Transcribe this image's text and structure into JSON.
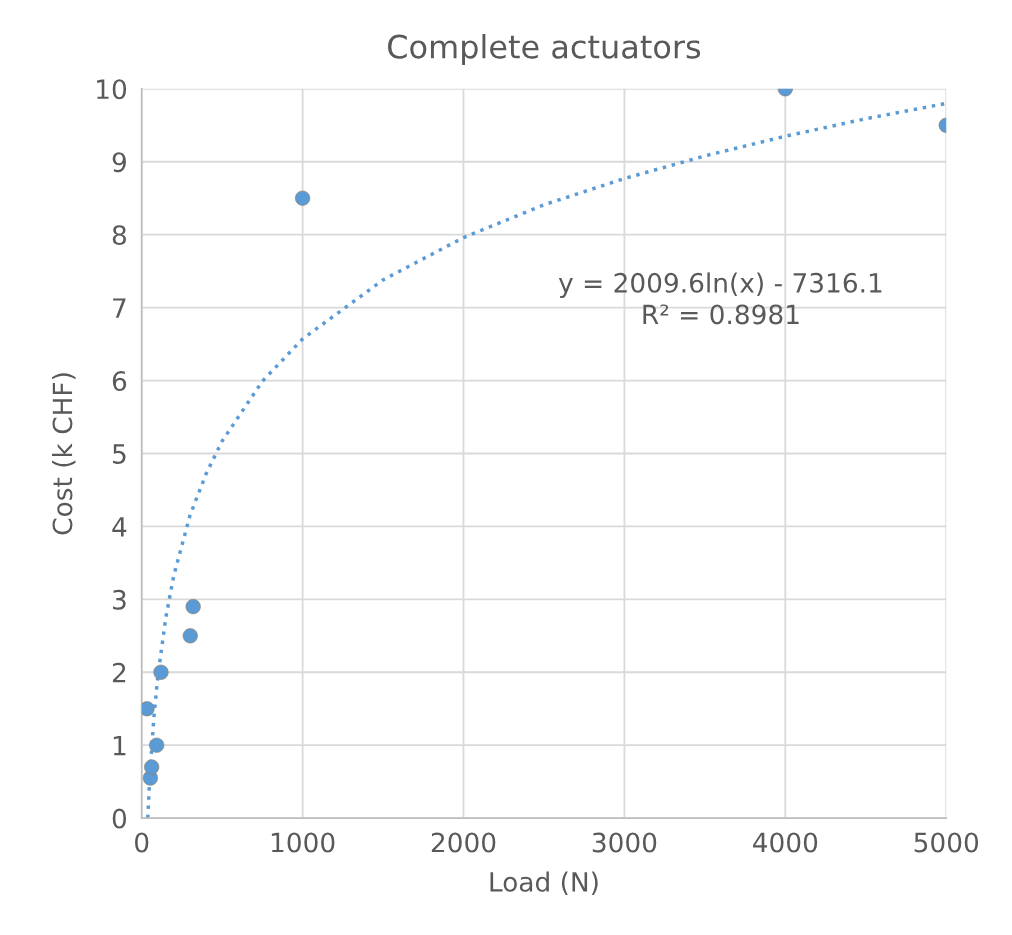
{
  "chart_data": {
    "type": "scatter",
    "title": "Complete actuators",
    "xlabel": "Load (N)",
    "ylabel": "Cost (k CHF)",
    "xlim": [
      0,
      5000
    ],
    "xticks": [
      0,
      1000,
      2000,
      3000,
      4000,
      5000
    ],
    "ylim": [
      0,
      10
    ],
    "yticks": [
      0,
      1,
      2,
      3,
      4,
      5,
      6,
      7,
      8,
      9,
      10
    ],
    "grid": true,
    "legend": false,
    "series": [
      {
        "color": "#5b9bd5",
        "marker": "circle",
        "x": [
          33,
          54,
          62,
          93,
          120,
          302,
          320,
          1000,
          4000,
          5000
        ],
        "values": [
          1.5,
          0.55,
          0.7,
          1.0,
          2.0,
          2.5,
          2.9,
          8.5,
          10,
          9.5
        ]
      },
      {
        "type": "line",
        "color": "#5b9bd5",
        "line_style": "dotted",
        "marker": "none",
        "x": [
          38,
          50,
          75,
          100,
          150,
          200,
          300,
          400,
          500,
          750,
          1000,
          1500,
          2000,
          2500,
          3000,
          3500,
          4000,
          4500,
          5000
        ],
        "values": [
          0.0,
          0.55,
          1.36,
          1.94,
          2.75,
          3.33,
          4.15,
          4.72,
          5.17,
          5.99,
          6.57,
          7.38,
          7.96,
          8.41,
          8.77,
          9.08,
          9.35,
          9.59,
          9.8
        ]
      }
    ],
    "annotations": [
      "y = 2009.6ln(x) - 7316.1\nR² = 0.8981"
    ]
  }
}
